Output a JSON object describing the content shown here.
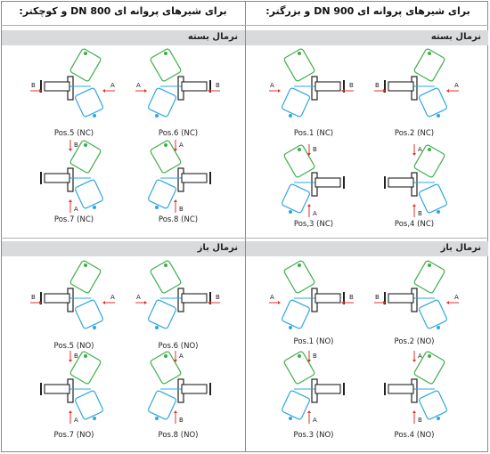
{
  "headings": {
    "right": "برای شیرهای پروانه ای DN 900 و بزرگتر:",
    "left": "برای شیرهای پروانه ای DN 800 و کوچکتر:"
  },
  "bands": {
    "nc": "نرمال بسته",
    "no": "نرمال باز"
  },
  "flow_labels": {
    "a": "A",
    "b": "B"
  },
  "captions": {
    "r_nc": [
      "Pos.1 (NC)",
      "Pos.2 (NC)",
      "Pos,3 (NC)",
      "Pos,4 (NC)"
    ],
    "l_nc": [
      "Pos.5 (NC)",
      "Pos.6 (NC)",
      "Pos.7 (NC)",
      "Pos.8 (NC)"
    ],
    "r_no": [
      "Pos.1 (NO)",
      "Pos.2 (NO)",
      "Pos.3 (NO)",
      "Pos.4 (NO)"
    ],
    "l_no": [
      "Pos.5 (NO)",
      "Pos.6 (NO)",
      "Pos.7 (NO)",
      "Pos.8 (NO)"
    ]
  },
  "colors": {
    "actuator_green": "#3fae4a",
    "actuator_blue": "#2fa6df",
    "arrow_red": "#e2302a",
    "band_gray": "#d9dadc",
    "line_dark": "#222222"
  }
}
